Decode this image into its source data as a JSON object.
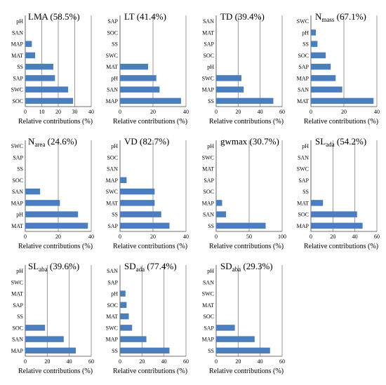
{
  "chart_data": [
    {
      "type": "bar",
      "orientation": "horizontal",
      "title": "LMA (58.5%)",
      "title_main": "LMA",
      "title_sub": "",
      "title_pct": " (58.5%)",
      "categories": [
        "pH",
        "SAN",
        "MAP",
        "MAT",
        "SS",
        "SAP",
        "SWC",
        "SOC"
      ],
      "values": [
        0,
        0,
        4,
        6,
        17,
        18,
        26,
        29
      ],
      "xlim": [
        0,
        40
      ],
      "xticks": [
        0,
        10,
        20,
        30,
        40
      ],
      "xlabel": "Relative contributions (%)",
      "grid": true
    },
    {
      "type": "bar",
      "orientation": "horizontal",
      "title": "LT (41.4%)",
      "title_main": "LT",
      "title_sub": "",
      "title_pct": " (41.4%)",
      "categories": [
        "SAP",
        "SOC",
        "SS",
        "SWC",
        "MAT",
        "pH",
        "SAN",
        "MAP"
      ],
      "values": [
        0,
        0,
        0,
        0,
        17,
        22,
        24,
        37
      ],
      "xlim": [
        0,
        40
      ],
      "xticks": [
        0,
        20,
        40
      ],
      "xlabel": "Relative contributions (%)",
      "grid": true
    },
    {
      "type": "bar",
      "orientation": "horizontal",
      "title": "TD (39.4%)",
      "title_main": "TD",
      "title_sub": "",
      "title_pct": " (39.4%)",
      "categories": [
        "SAN",
        "MAT",
        "SAP",
        "SOC",
        "pH",
        "SWC",
        "MAP",
        "SS"
      ],
      "values": [
        0,
        0,
        0,
        0,
        0,
        23,
        25,
        52
      ],
      "xlim": [
        0,
        60
      ],
      "xticks": [
        0,
        20,
        40,
        60
      ],
      "xlabel": "Relative contributions (%)",
      "grid": true
    },
    {
      "type": "bar",
      "orientation": "horizontal",
      "title": "Nmass (67.1%)",
      "title_main": "N",
      "title_sub": "mass",
      "title_pct": " (67.1%)",
      "categories": [
        "SWC",
        "pH",
        "SS",
        "SOC",
        "SAP",
        "MAP",
        "SAN",
        "MAT"
      ],
      "values": [
        0,
        3,
        4,
        9,
        12,
        15,
        19,
        38
      ],
      "xlim": [
        0,
        40
      ],
      "xticks": [
        0,
        20,
        40
      ],
      "xlabel": "Relative contributions (%)",
      "grid": true
    },
    {
      "type": "bar",
      "orientation": "horizontal",
      "title": "Narea (24.6%)",
      "title_main": "N",
      "title_sub": "area",
      "title_pct": " (24.6%)",
      "categories": [
        "SWC",
        "SAP",
        "SS",
        "SOC",
        "SAN",
        "MAP",
        "pH",
        "MAT"
      ],
      "values": [
        0,
        0,
        0,
        0,
        9,
        21,
        32,
        38
      ],
      "xlim": [
        0,
        40
      ],
      "xticks": [
        0,
        20,
        40
      ],
      "xlabel": "Relative contributions (%)",
      "grid": true
    },
    {
      "type": "bar",
      "orientation": "horizontal",
      "title": "VD (82.7%)",
      "title_main": "VD",
      "title_sub": "",
      "title_pct": " (82.7%)",
      "categories": [
        "pH",
        "SOC",
        "SAN",
        "MAP",
        "SWC",
        "MAT",
        "SS",
        "SAP"
      ],
      "values": [
        0,
        0,
        0,
        4,
        21,
        21,
        25,
        30
      ],
      "xlim": [
        0,
        40
      ],
      "xticks": [
        0,
        20,
        40
      ],
      "xlabel": "Relative contributions (%)",
      "grid": true
    },
    {
      "type": "bar",
      "orientation": "horizontal",
      "title": "gwmax (30.7%)",
      "title_main": "gwmax",
      "title_sub": "",
      "title_pct": " (30.7%)",
      "categories": [
        "pH",
        "SWC",
        "MAT",
        "SAP",
        "SOC",
        "MAP",
        "SAN",
        "SS"
      ],
      "values": [
        0,
        0,
        0,
        0,
        0,
        9,
        15,
        75
      ],
      "xlim": [
        0,
        100
      ],
      "xticks": [
        0,
        50,
        100
      ],
      "xlabel": "Relative contributions (%)",
      "grid": true
    },
    {
      "type": "bar",
      "orientation": "horizontal",
      "title": "SLada (54.2%)",
      "title_main": "SL",
      "title_sub": "ada",
      "title_pct": " (54.2%)",
      "categories": [
        "pH",
        "SAN",
        "SWC",
        "SAP",
        "SS",
        "MAT",
        "SOC",
        "MAP"
      ],
      "values": [
        0,
        0,
        0,
        0,
        0,
        11,
        42,
        47
      ],
      "xlim": [
        0,
        60
      ],
      "xticks": [
        0,
        20,
        40,
        60
      ],
      "xlabel": "Relative contributions (%)",
      "grid": true
    },
    {
      "type": "bar",
      "orientation": "horizontal",
      "title": "SLaba (39.6%)",
      "title_main": "SL",
      "title_sub": "aba",
      "title_pct": " (39.6%)",
      "categories": [
        "pH",
        "SWC",
        "MAT",
        "SAP",
        "SS",
        "SOC",
        "SAN",
        "MAP"
      ],
      "values": [
        0,
        0,
        0,
        0,
        0,
        18,
        35,
        46
      ],
      "xlim": [
        0,
        60
      ],
      "xticks": [
        0,
        20,
        40,
        60
      ],
      "xlabel": "Relative contributions (%)",
      "grid": true
    },
    {
      "type": "bar",
      "orientation": "horizontal",
      "title": "SDada (77.4%)",
      "title_main": "SD",
      "title_sub": "ada",
      "title_pct": " (77.4%)",
      "categories": [
        "SAN",
        "SAP",
        "pH",
        "SOC",
        "MAT",
        "SWC",
        "MAP",
        "SS"
      ],
      "values": [
        0,
        0,
        5,
        6,
        8,
        11,
        24,
        45
      ],
      "xlim": [
        0,
        60
      ],
      "xticks": [
        0,
        20,
        40,
        60
      ],
      "xlabel": "Relative contributions (%)",
      "grid": true
    },
    {
      "type": "bar",
      "orientation": "horizontal",
      "title": "SDaba (29.3%)",
      "title_main": "SD",
      "title_sub": "aba",
      "title_pct": " (29.3%)",
      "categories": [
        "pH",
        "SAN",
        "SWC",
        "MAT",
        "SOC",
        "SAP",
        "MAP",
        "SS"
      ],
      "values": [
        0,
        0,
        0,
        0,
        0,
        17,
        35,
        49
      ],
      "xlim": [
        0,
        60
      ],
      "xticks": [
        0,
        20,
        40,
        60
      ],
      "xlabel": "Relative contributions (%)",
      "grid": true
    }
  ],
  "colors": {
    "bar": "#4a7ebf",
    "grid": "#808080"
  }
}
